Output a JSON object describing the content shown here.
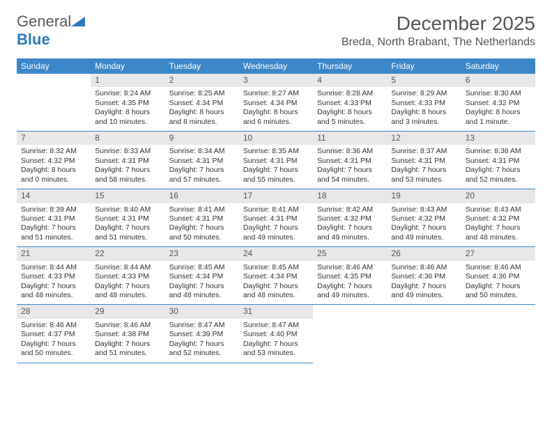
{
  "logo": {
    "part1": "General",
    "part2": "Blue"
  },
  "title": "December 2025",
  "location": "Breda, North Brabant, The Netherlands",
  "colors": {
    "header_bg": "#3c87c7",
    "header_text": "#ffffff",
    "daynum_bg": "#e8e8e8",
    "text": "#333333",
    "title_text": "#555555",
    "rule": "#3c87c7"
  },
  "typography": {
    "title_fontsize": 28,
    "location_fontsize": 16,
    "dayheader_fontsize": 12,
    "cell_fontsize": 10.5
  },
  "day_headers": [
    "Sunday",
    "Monday",
    "Tuesday",
    "Wednesday",
    "Thursday",
    "Friday",
    "Saturday"
  ],
  "weeks": [
    [
      null,
      {
        "n": "1",
        "sunrise": "Sunrise: 8:24 AM",
        "sunset": "Sunset: 4:35 PM",
        "day1": "Daylight: 8 hours",
        "day2": "and 10 minutes."
      },
      {
        "n": "2",
        "sunrise": "Sunrise: 8:25 AM",
        "sunset": "Sunset: 4:34 PM",
        "day1": "Daylight: 8 hours",
        "day2": "and 8 minutes."
      },
      {
        "n": "3",
        "sunrise": "Sunrise: 8:27 AM",
        "sunset": "Sunset: 4:34 PM",
        "day1": "Daylight: 8 hours",
        "day2": "and 6 minutes."
      },
      {
        "n": "4",
        "sunrise": "Sunrise: 8:28 AM",
        "sunset": "Sunset: 4:33 PM",
        "day1": "Daylight: 8 hours",
        "day2": "and 5 minutes."
      },
      {
        "n": "5",
        "sunrise": "Sunrise: 8:29 AM",
        "sunset": "Sunset: 4:33 PM",
        "day1": "Daylight: 8 hours",
        "day2": "and 3 minutes."
      },
      {
        "n": "6",
        "sunrise": "Sunrise: 8:30 AM",
        "sunset": "Sunset: 4:32 PM",
        "day1": "Daylight: 8 hours",
        "day2": "and 1 minute."
      }
    ],
    [
      {
        "n": "7",
        "sunrise": "Sunrise: 8:32 AM",
        "sunset": "Sunset: 4:32 PM",
        "day1": "Daylight: 8 hours",
        "day2": "and 0 minutes."
      },
      {
        "n": "8",
        "sunrise": "Sunrise: 8:33 AM",
        "sunset": "Sunset: 4:31 PM",
        "day1": "Daylight: 7 hours",
        "day2": "and 58 minutes."
      },
      {
        "n": "9",
        "sunrise": "Sunrise: 8:34 AM",
        "sunset": "Sunset: 4:31 PM",
        "day1": "Daylight: 7 hours",
        "day2": "and 57 minutes."
      },
      {
        "n": "10",
        "sunrise": "Sunrise: 8:35 AM",
        "sunset": "Sunset: 4:31 PM",
        "day1": "Daylight: 7 hours",
        "day2": "and 55 minutes."
      },
      {
        "n": "11",
        "sunrise": "Sunrise: 8:36 AM",
        "sunset": "Sunset: 4:31 PM",
        "day1": "Daylight: 7 hours",
        "day2": "and 54 minutes."
      },
      {
        "n": "12",
        "sunrise": "Sunrise: 8:37 AM",
        "sunset": "Sunset: 4:31 PM",
        "day1": "Daylight: 7 hours",
        "day2": "and 53 minutes."
      },
      {
        "n": "13",
        "sunrise": "Sunrise: 8:38 AM",
        "sunset": "Sunset: 4:31 PM",
        "day1": "Daylight: 7 hours",
        "day2": "and 52 minutes."
      }
    ],
    [
      {
        "n": "14",
        "sunrise": "Sunrise: 8:39 AM",
        "sunset": "Sunset: 4:31 PM",
        "day1": "Daylight: 7 hours",
        "day2": "and 51 minutes."
      },
      {
        "n": "15",
        "sunrise": "Sunrise: 8:40 AM",
        "sunset": "Sunset: 4:31 PM",
        "day1": "Daylight: 7 hours",
        "day2": "and 51 minutes."
      },
      {
        "n": "16",
        "sunrise": "Sunrise: 8:41 AM",
        "sunset": "Sunset: 4:31 PM",
        "day1": "Daylight: 7 hours",
        "day2": "and 50 minutes."
      },
      {
        "n": "17",
        "sunrise": "Sunrise: 8:41 AM",
        "sunset": "Sunset: 4:31 PM",
        "day1": "Daylight: 7 hours",
        "day2": "and 49 minutes."
      },
      {
        "n": "18",
        "sunrise": "Sunrise: 8:42 AM",
        "sunset": "Sunset: 4:32 PM",
        "day1": "Daylight: 7 hours",
        "day2": "and 49 minutes."
      },
      {
        "n": "19",
        "sunrise": "Sunrise: 8:43 AM",
        "sunset": "Sunset: 4:32 PM",
        "day1": "Daylight: 7 hours",
        "day2": "and 49 minutes."
      },
      {
        "n": "20",
        "sunrise": "Sunrise: 8:43 AM",
        "sunset": "Sunset: 4:32 PM",
        "day1": "Daylight: 7 hours",
        "day2": "and 48 minutes."
      }
    ],
    [
      {
        "n": "21",
        "sunrise": "Sunrise: 8:44 AM",
        "sunset": "Sunset: 4:33 PM",
        "day1": "Daylight: 7 hours",
        "day2": "and 48 minutes."
      },
      {
        "n": "22",
        "sunrise": "Sunrise: 8:44 AM",
        "sunset": "Sunset: 4:33 PM",
        "day1": "Daylight: 7 hours",
        "day2": "and 48 minutes."
      },
      {
        "n": "23",
        "sunrise": "Sunrise: 8:45 AM",
        "sunset": "Sunset: 4:34 PM",
        "day1": "Daylight: 7 hours",
        "day2": "and 48 minutes."
      },
      {
        "n": "24",
        "sunrise": "Sunrise: 8:45 AM",
        "sunset": "Sunset: 4:34 PM",
        "day1": "Daylight: 7 hours",
        "day2": "and 48 minutes."
      },
      {
        "n": "25",
        "sunrise": "Sunrise: 8:46 AM",
        "sunset": "Sunset: 4:35 PM",
        "day1": "Daylight: 7 hours",
        "day2": "and 49 minutes."
      },
      {
        "n": "26",
        "sunrise": "Sunrise: 8:46 AM",
        "sunset": "Sunset: 4:36 PM",
        "day1": "Daylight: 7 hours",
        "day2": "and 49 minutes."
      },
      {
        "n": "27",
        "sunrise": "Sunrise: 8:46 AM",
        "sunset": "Sunset: 4:36 PM",
        "day1": "Daylight: 7 hours",
        "day2": "and 50 minutes."
      }
    ],
    [
      {
        "n": "28",
        "sunrise": "Sunrise: 8:46 AM",
        "sunset": "Sunset: 4:37 PM",
        "day1": "Daylight: 7 hours",
        "day2": "and 50 minutes."
      },
      {
        "n": "29",
        "sunrise": "Sunrise: 8:46 AM",
        "sunset": "Sunset: 4:38 PM",
        "day1": "Daylight: 7 hours",
        "day2": "and 51 minutes."
      },
      {
        "n": "30",
        "sunrise": "Sunrise: 8:47 AM",
        "sunset": "Sunset: 4:39 PM",
        "day1": "Daylight: 7 hours",
        "day2": "and 52 minutes."
      },
      {
        "n": "31",
        "sunrise": "Sunrise: 8:47 AM",
        "sunset": "Sunset: 4:40 PM",
        "day1": "Daylight: 7 hours",
        "day2": "and 53 minutes."
      },
      null,
      null,
      null
    ]
  ]
}
